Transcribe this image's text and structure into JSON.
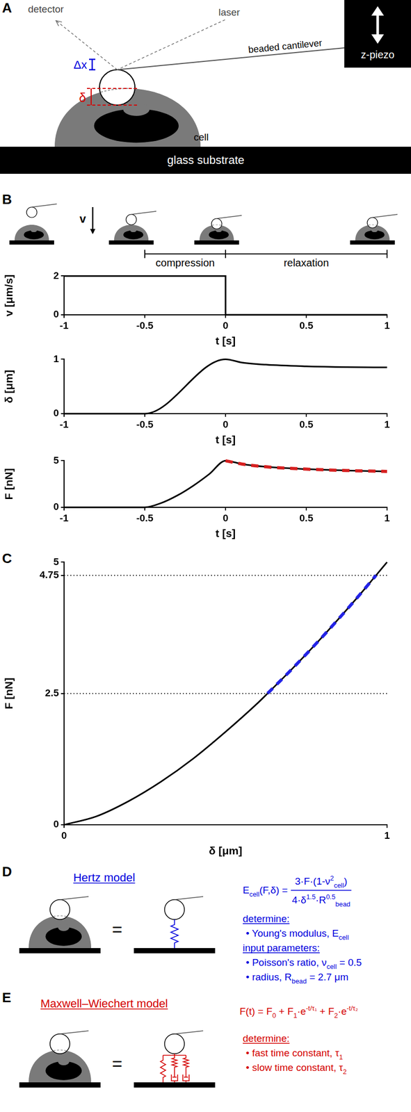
{
  "panels": {
    "A": {
      "label": "A",
      "detector": "detector",
      "laser": "laser",
      "cantilever": "beaded cantilever",
      "piezo": "z-piezo",
      "deflection": "Δx",
      "indentation": "δ",
      "cell": "cell",
      "substrate": "glass substrate"
    },
    "B": {
      "label": "B",
      "velocity": "v",
      "phases": [
        "compression",
        "relaxation"
      ]
    },
    "C": {
      "label": "C"
    },
    "D": {
      "label": "D",
      "title": "Hertz model",
      "equals": "=",
      "formula": {
        "lhs": [
          {
            "text": "E"
          },
          {
            "text": "cell",
            "sub": true
          },
          {
            "text": "(F,δ) ="
          }
        ],
        "numerator": [
          {
            "text": "3·F·(1-ν"
          },
          {
            "text": "2",
            "sup": true
          },
          {
            "text": "cell",
            "sub": true
          },
          {
            "text": ")"
          }
        ],
        "denominator": [
          {
            "text": "4·δ"
          },
          {
            "text": "1.5",
            "sup": true
          },
          {
            "text": "·R"
          },
          {
            "text": "0.5",
            "sup": true
          },
          {
            "text": "bead",
            "sub": true
          }
        ]
      },
      "sections": [
        {
          "heading": "determine:",
          "items": [
            [
              {
                "text": "• Young's modulus, E"
              },
              {
                "text": "cell",
                "sub": true
              }
            ]
          ]
        },
        {
          "heading": "input parameters:",
          "items": [
            [
              {
                "text": "• Poisson's ratio, ν"
              },
              {
                "text": "cell",
                "sub": true
              },
              {
                "text": " = 0.5"
              }
            ],
            [
              {
                "text": "• radius, R"
              },
              {
                "text": "bead",
                "sub": true
              },
              {
                "text": " = 2.7 μm"
              }
            ]
          ]
        }
      ]
    },
    "E": {
      "label": "E",
      "title": "Maxwell–Wiechert model",
      "equals": "=",
      "formula": [
        {
          "text": "F(t) = F"
        },
        {
          "text": "0",
          "sub": true
        },
        {
          "text": " + F"
        },
        {
          "text": "1",
          "sub": true
        },
        {
          "text": "·e"
        },
        {
          "text": "-t/τ₁",
          "sup": true
        },
        {
          "text": " + F"
        },
        {
          "text": "2",
          "sub": true
        },
        {
          "text": "·e"
        },
        {
          "text": "-t/τ₂",
          "sup": true
        }
      ],
      "sections": [
        {
          "heading": "determine:",
          "items": [
            [
              {
                "text": "• fast time constant, τ"
              },
              {
                "text": "1",
                "sub": true
              }
            ],
            [
              {
                "text": "• slow time constant, τ"
              },
              {
                "text": "2",
                "sub": true
              }
            ]
          ]
        }
      ]
    }
  },
  "chart_data": [
    {
      "type": "line",
      "x_label": "t [s]",
      "y_label": "v [μm/s]",
      "x": [
        -1,
        0,
        0,
        1
      ],
      "series": [
        {
          "color": "#000000",
          "line_style": "solid",
          "values": [
            2,
            2,
            0,
            0
          ]
        }
      ],
      "xlim": [
        -1,
        1
      ],
      "xticks": [
        -1,
        -0.5,
        0,
        0.5,
        1
      ],
      "ylim": [
        0,
        2
      ],
      "yticks": [
        0,
        2
      ],
      "grid": false
    },
    {
      "type": "line",
      "x_label": "t [s]",
      "y_label": "δ [μm]",
      "x": [
        -1,
        -0.5,
        0,
        0.1,
        0.25,
        0.5,
        0.75,
        1
      ],
      "series": [
        {
          "color": "#000000",
          "line_style": "solid",
          "values": [
            0,
            0,
            1,
            0.94,
            0.9,
            0.87,
            0.855,
            0.85
          ]
        }
      ],
      "xlim": [
        -1,
        1
      ],
      "xticks": [
        -1,
        -0.5,
        0,
        0.5,
        1
      ],
      "ylim": [
        0,
        1
      ],
      "yticks": [
        0,
        1
      ],
      "grid": false
    },
    {
      "type": "line",
      "x_label": "t [s]",
      "y_label": "F [nN]",
      "x": [
        -1,
        -0.5,
        -0.4,
        -0.3,
        -0.2,
        -0.1,
        0,
        0.1,
        0.25,
        0.5,
        0.75,
        1
      ],
      "series": [
        {
          "color": "#000000",
          "line_style": "solid",
          "values": [
            0,
            0,
            0.45,
            1.26,
            2.32,
            3.58,
            5,
            4.65,
            4.35,
            4.1,
            3.95,
            3.85
          ]
        },
        {
          "color": "#d62020",
          "line_style": "dashed",
          "values": [
            null,
            null,
            null,
            null,
            null,
            null,
            5,
            4.65,
            4.35,
            4.1,
            3.95,
            3.85
          ]
        }
      ],
      "xlim": [
        -1,
        1
      ],
      "xticks": [
        -1,
        -0.5,
        0,
        0.5,
        1
      ],
      "ylim": [
        0,
        5
      ],
      "yticks": [
        0,
        5
      ],
      "grid": false
    },
    {
      "type": "line",
      "x_label": "δ [μm]",
      "y_label": "F [nN]",
      "x": [
        0,
        0.1,
        0.2,
        0.3,
        0.4,
        0.5,
        0.6,
        0.63,
        0.7,
        0.8,
        0.9,
        0.966,
        1
      ],
      "series": [
        {
          "color": "#000000",
          "line_style": "solid",
          "values": [
            0,
            0.16,
            0.45,
            0.82,
            1.26,
            1.77,
            2.32,
            2.5,
            2.93,
            3.58,
            4.27,
            4.75,
            5
          ]
        },
        {
          "color": "#2323e6",
          "line_style": "dashed",
          "values": [
            null,
            null,
            null,
            null,
            null,
            null,
            null,
            2.5,
            2.93,
            3.58,
            4.27,
            4.75,
            null
          ]
        }
      ],
      "hlines": [
        2.5,
        4.75
      ],
      "xlim": [
        0,
        1
      ],
      "xticks": [
        0,
        1
      ],
      "ylim": [
        0,
        5
      ],
      "yticks": [
        0,
        2.5,
        4.75,
        5
      ],
      "grid": false
    }
  ]
}
